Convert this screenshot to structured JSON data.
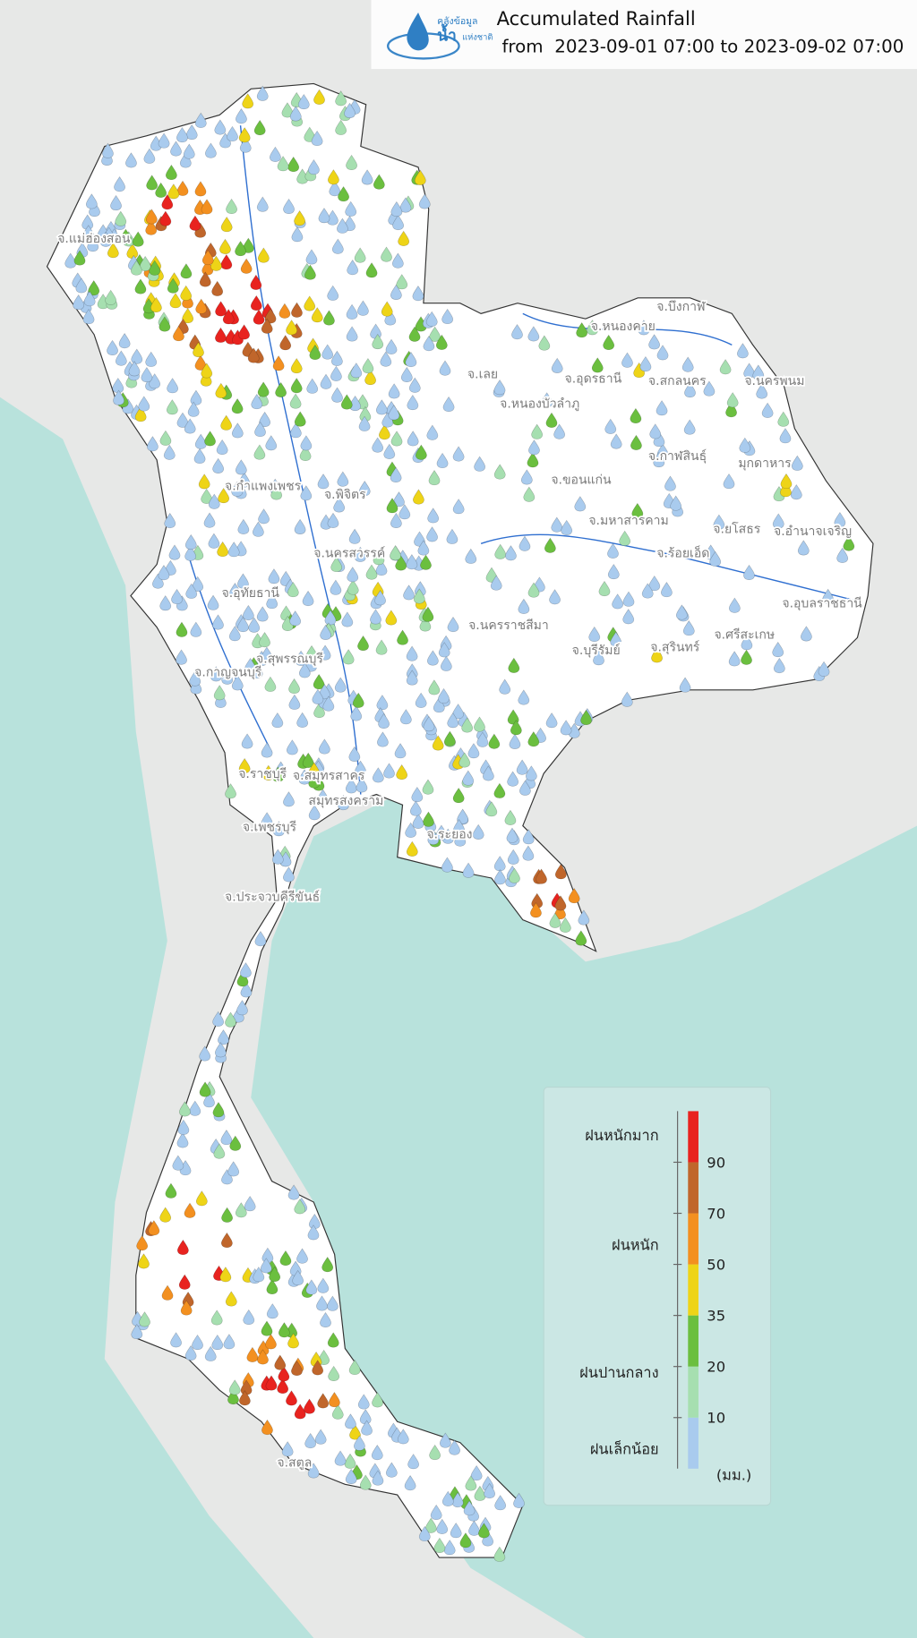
{
  "header": {
    "logo_text": [
      "คลังข้อมูล",
      "น้ำ",
      "แห่งชาติ"
    ],
    "title": "Accumulated Rainfall",
    "period": "from  2023-09-01 07:00 to 2023-09-02 07:00"
  },
  "map": {
    "labels": [
      "จ.แม่ฮ่องสอน",
      "จ.บึงกาฬ",
      "จ.หนองคาย",
      "จ.อุดรธานี",
      "จ.สกลนคร",
      "จ.นครพนม",
      "จ.เลย",
      "จ.หนองบัวลำภู",
      "จ.กาฬสินธุ์",
      "มุกดาหาร",
      "จ.ขอนแก่น",
      "จ.มหาสารคาม",
      "จ.ยโสธร",
      "จ.อำนาจเจริญ",
      "จ.ร้อยเอ็ด",
      "จ.กำแพงเพชร",
      "จ.พิจิตร",
      "จ.นครสวรรค์",
      "จ.อุทัยธานี",
      "จ.อุบลราชธานี",
      "จ.นครราชสีมา",
      "จ.บุรีรัมย์",
      "จ.สุรินทร์",
      "จ.ศรีสะเกษ",
      "จ.กาญจนบุรี",
      "จ.สุพรรณบุรี",
      "จ.ราชบุรี",
      "จ.สมุทรสาคร",
      "สมุทรสงคราม",
      "จ.เพชรบุรี",
      "จ.ระยอง",
      "จ.ประจวบคีรีขันธ์",
      "จ.สตูล"
    ]
  },
  "legend": {
    "colors": [
      "#a9cbee",
      "#a6dfb0",
      "#6bbf3f",
      "#eed417",
      "#f39020",
      "#c0662b",
      "#e8231f"
    ],
    "ticks": [
      10,
      20,
      35,
      50,
      70,
      90
    ],
    "classes": [
      "ฝนเล็กน้อย",
      "ฝนปานกลาง",
      "ฝนหนัก",
      "ฝนหนักมาก"
    ],
    "unit": "(มม.)"
  }
}
